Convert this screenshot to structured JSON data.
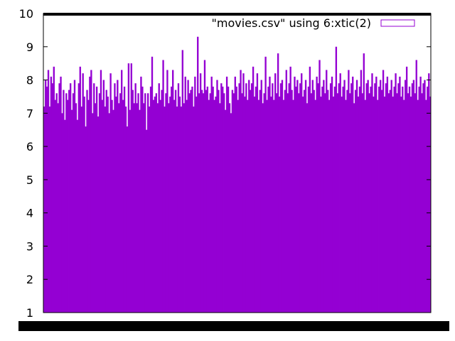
{
  "chart_data": {
    "type": "bar",
    "title": "",
    "xlabel": "",
    "ylabel": "",
    "legend": {
      "label": "\"movies.csv\" using 6:xtic(2)",
      "placement": "top-right"
    },
    "ylim": [
      1,
      10
    ],
    "yticks": [
      "1",
      "2",
      "3",
      "4",
      "5",
      "6",
      "7",
      "8",
      "9",
      "10"
    ],
    "grid": false,
    "bar_color": "#9400D3",
    "series": [
      {
        "name": "\"movies.csv\" using 6:xtic(2)",
        "values": [
          7.2,
          8.0,
          7.8,
          8.3,
          7.2,
          8.1,
          7.9,
          8.4,
          7.4,
          7.6,
          7.3,
          7.9,
          8.1,
          7.0,
          7.7,
          6.8,
          7.6,
          7.4,
          7.7,
          7.9,
          7.1,
          7.6,
          8.0,
          7.3,
          6.8,
          7.9,
          8.4,
          7.2,
          8.2,
          7.5,
          6.6,
          7.7,
          7.4,
          8.1,
          8.3,
          7.0,
          7.9,
          7.3,
          7.8,
          6.9,
          7.6,
          8.3,
          7.4,
          8.0,
          7.2,
          7.7,
          7.5,
          7.0,
          8.2,
          7.4,
          7.1,
          7.9,
          7.5,
          8.0,
          7.3,
          7.6,
          8.3,
          7.4,
          7.8,
          7.2,
          6.6,
          8.5,
          7.1,
          8.5,
          7.7,
          7.3,
          7.9,
          7.3,
          7.6,
          7.1,
          8.1,
          7.8,
          7.3,
          7.6,
          6.5,
          7.6,
          7.2,
          7.8,
          8.7,
          7.4,
          7.5,
          7.6,
          7.3,
          7.9,
          7.4,
          7.7,
          8.6,
          7.2,
          7.6,
          8.3,
          7.3,
          7.5,
          7.8,
          8.3,
          7.4,
          7.7,
          7.2,
          7.9,
          7.5,
          7.2,
          8.9,
          7.3,
          8.1,
          7.4,
          8.0,
          7.6,
          7.7,
          7.8,
          7.2,
          8.1,
          7.5,
          9.3,
          7.6,
          8.2,
          7.7,
          7.6,
          8.6,
          7.7,
          7.8,
          7.4,
          7.6,
          8.1,
          7.8,
          7.4,
          7.5,
          8.0,
          7.7,
          7.3,
          7.9,
          7.8,
          7.6,
          7.1,
          8.1,
          7.8,
          7.3,
          7.0,
          7.7,
          7.6,
          8.1,
          7.8,
          7.4,
          7.9,
          8.3,
          7.6,
          8.2,
          7.5,
          7.9,
          7.4,
          8.0,
          7.7,
          7.9,
          8.4,
          7.5,
          7.8,
          8.2,
          7.4,
          7.7,
          8.0,
          7.3,
          7.6,
          8.7,
          7.4,
          7.8,
          8.1,
          7.5,
          7.9,
          7.4,
          8.2,
          7.6,
          8.8,
          7.5,
          7.9,
          8.0,
          7.4,
          7.7,
          8.3,
          7.6,
          7.9,
          8.4,
          7.7,
          7.4,
          8.1,
          7.8,
          8.0,
          7.6,
          7.9,
          8.2,
          7.5,
          7.7,
          8.0,
          7.3,
          7.8,
          8.4,
          7.6,
          8.0,
          7.7,
          7.4,
          8.1,
          7.9,
          8.6,
          7.5,
          7.8,
          8.0,
          7.6,
          8.3,
          7.7,
          7.4,
          7.9,
          8.1,
          7.5,
          7.8,
          9.0,
          7.6,
          7.9,
          8.2,
          7.5,
          7.8,
          8.0,
          7.4,
          7.7,
          8.3,
          7.6,
          7.9,
          8.1,
          7.3,
          7.7,
          8.0,
          7.5,
          7.8,
          8.3,
          7.6,
          8.8,
          7.4,
          7.9,
          8.0,
          7.6,
          7.8,
          8.2,
          7.5,
          7.9,
          8.1,
          7.4,
          7.8,
          8.0,
          7.7,
          8.3,
          7.5,
          7.9,
          8.1,
          7.6,
          7.7,
          8.0,
          7.5,
          7.8,
          8.2,
          7.6,
          7.9,
          8.1,
          7.5,
          7.8,
          7.4,
          8.0,
          8.4,
          7.6,
          7.8,
          7.5,
          7.9,
          8.0,
          7.6,
          8.6,
          7.4,
          7.8,
          8.1,
          7.6,
          7.9,
          8.0,
          7.4,
          7.8,
          8.2,
          7.5
        ]
      }
    ]
  }
}
